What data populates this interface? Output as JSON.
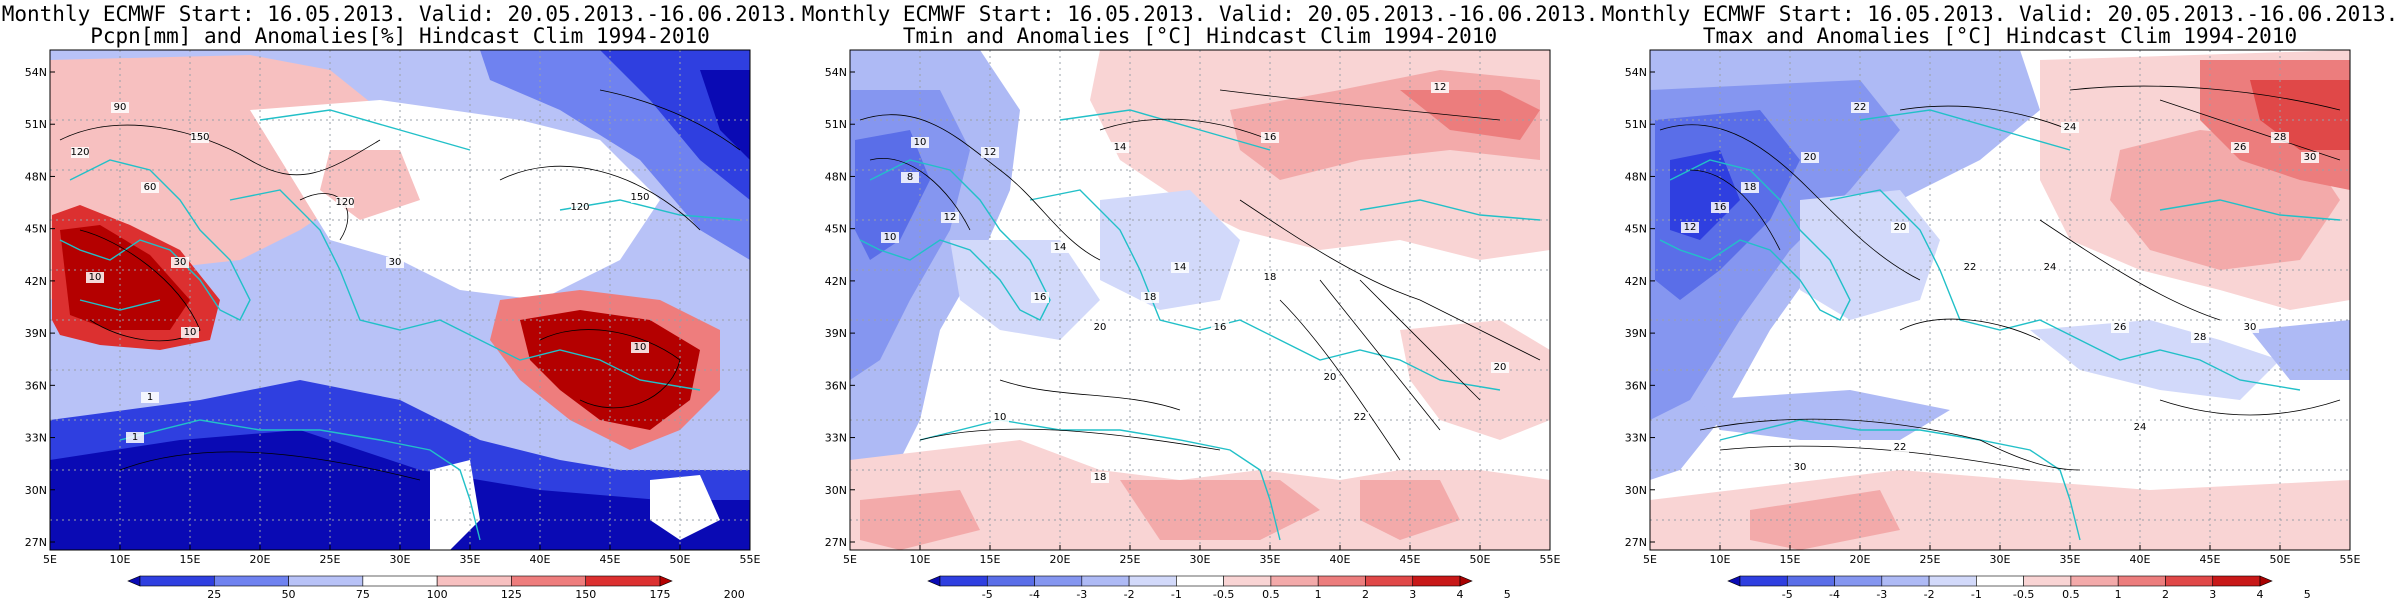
{
  "panels": [
    {
      "title_line1": "Monthly ECMWF Start: 16.05.2013. Valid: 20.05.2013.-16.06.2013.",
      "title_line2": "Pcpn[mm] and Anomalies[%] Hindcast Clim 1994-2010",
      "colorbar_labels": [
        "25",
        "50",
        "75",
        "100",
        "125",
        "150",
        "175",
        "200"
      ],
      "colorbar_colors": [
        "#0a0ab4",
        "#2f3fe0",
        "#6f82f0",
        "#b8c2f7",
        "#ffffff",
        "#f7c0c0",
        "#ee7d7d",
        "#dc3030",
        "#b40000"
      ],
      "contour_labels": [
        "90",
        "120",
        "150",
        "60",
        "120",
        "30",
        "10",
        "30",
        "1",
        "10",
        "1",
        "10",
        "150",
        "120"
      ]
    },
    {
      "title_line1": "Monthly ECMWF Start: 16.05.2013. Valid: 20.05.2013.-16.06.2013.",
      "title_line2": "Tmin and Anomalies [°C] Hindcast Clim 1994-2010",
      "colorbar_labels": [
        "-5",
        "-4",
        "-3",
        "-2",
        "-1",
        "-0.5",
        "0.5",
        "1",
        "2",
        "3",
        "4",
        "5"
      ],
      "colorbar_colors": [
        "#0a0ab4",
        "#2f3fe0",
        "#5a6ee8",
        "#8596f0",
        "#aebaf5",
        "#d2d9fa",
        "#ffffff",
        "#f9d4d4",
        "#f3aaaa",
        "#ec7d7d",
        "#e04848",
        "#c81818",
        "#a80000"
      ],
      "contour_labels": [
        "10",
        "12",
        "14",
        "16",
        "12",
        "8",
        "10",
        "12",
        "14",
        "18",
        "20",
        "16",
        "18",
        "16",
        "20",
        "22",
        "10",
        "14",
        "20",
        "18"
      ]
    },
    {
      "title_line1": "Monthly ECMWF Start: 16.05.2013. Valid: 20.05.2013.-16.06.2013.",
      "title_line2": "Tmax and Anomalies [°C] Hindcast Clim 1994-2010",
      "colorbar_labels": [
        "-5",
        "-4",
        "-3",
        "-2",
        "-1",
        "-0.5",
        "0.5",
        "1",
        "2",
        "3",
        "4",
        "5"
      ],
      "colorbar_colors": [
        "#0a0ab4",
        "#2f3fe0",
        "#5a6ee8",
        "#8596f0",
        "#aebaf5",
        "#d2d9fa",
        "#ffffff",
        "#f9d4d4",
        "#f3aaaa",
        "#ec7d7d",
        "#e04848",
        "#c81818",
        "#a80000"
      ],
      "contour_labels": [
        "22",
        "24",
        "26",
        "28",
        "30",
        "20",
        "18",
        "16",
        "12",
        "20",
        "22",
        "24",
        "26",
        "28",
        "30",
        "24",
        "22",
        "30"
      ]
    }
  ],
  "axes": {
    "lon_labels": [
      "5E",
      "10E",
      "15E",
      "20E",
      "25E",
      "30E",
      "35E",
      "40E",
      "45E",
      "50E",
      "55E"
    ],
    "lat_labels": [
      "54N",
      "51N",
      "48N",
      "45N",
      "42N",
      "39N",
      "36N",
      "33N",
      "30N",
      "27N"
    ]
  }
}
